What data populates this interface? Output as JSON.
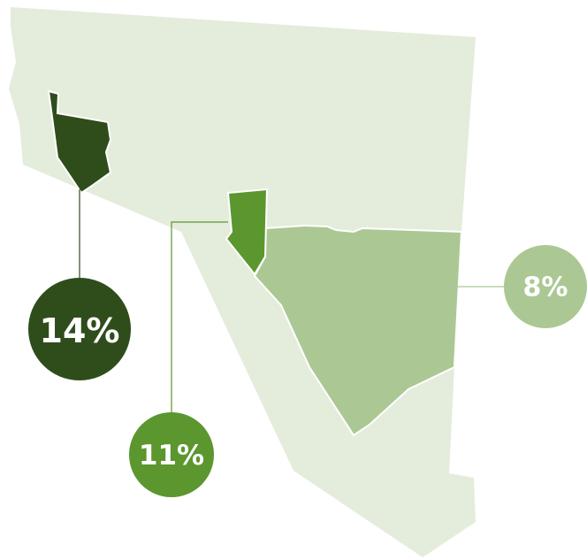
{
  "regions": [
    {
      "label": "14%",
      "color": "#2e4d1b"
    },
    {
      "label": "11%",
      "color": "#5c962f"
    },
    {
      "label": "8%",
      "color": "#abc894"
    }
  ]
}
